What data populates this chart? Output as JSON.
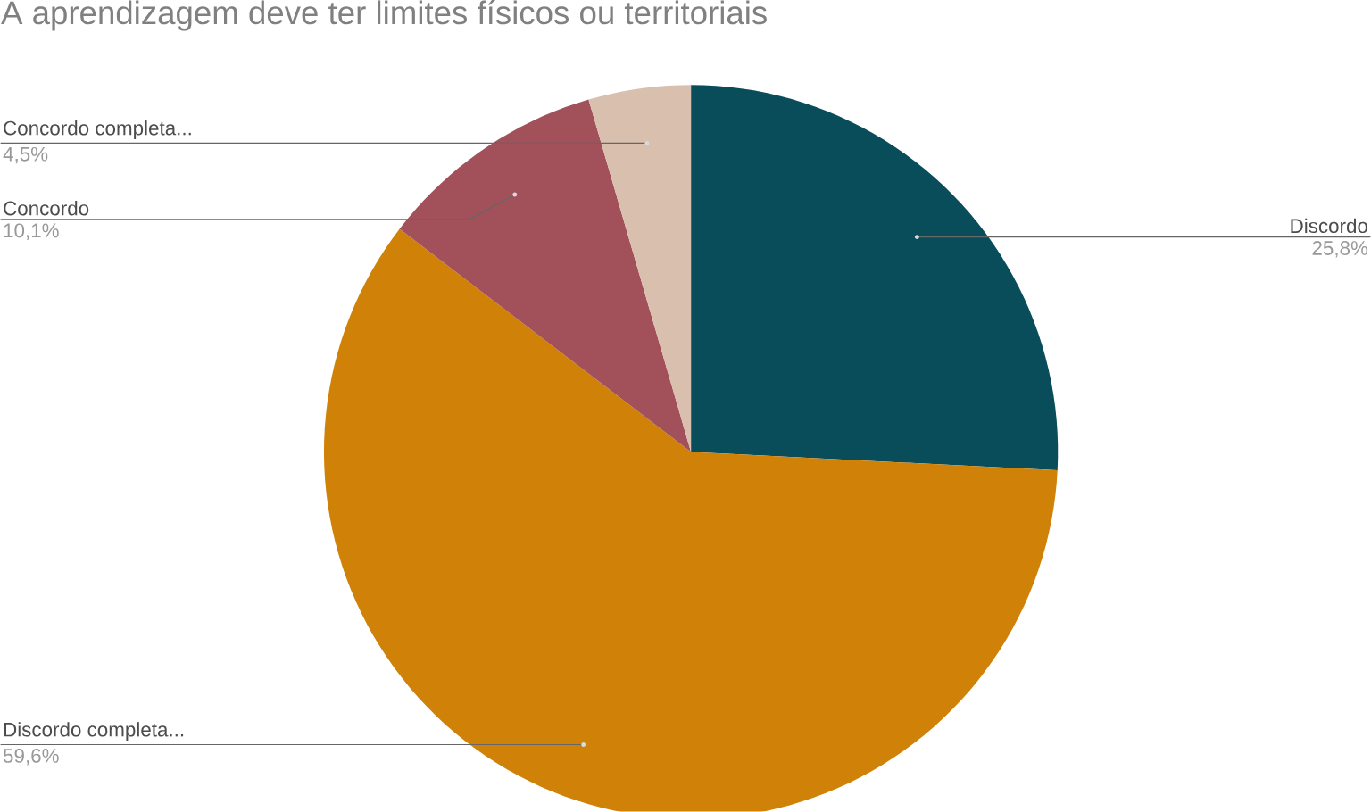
{
  "chart_data": {
    "type": "pie",
    "title": "A aprendizagem deve ter limites físicos ou territoriais",
    "categories": [
      "Discordo",
      "Discordo completa...",
      "Concordo",
      "Concordo completa..."
    ],
    "values": [
      25.8,
      59.6,
      10.1,
      4.5
    ],
    "colors": [
      "#0a4d5a",
      "#d08208",
      "#a2515b",
      "#d9bfae"
    ],
    "value_labels": [
      "25,8%",
      "59,6%",
      "10,1%",
      "4,5%"
    ]
  }
}
